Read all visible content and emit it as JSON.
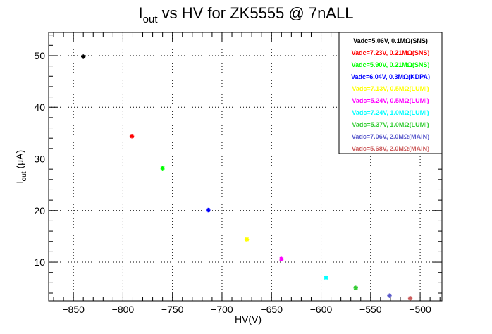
{
  "chart_data": {
    "type": "scatter",
    "title": {
      "main": "I",
      "sub": "out",
      "rest": " vs HV for ZK5555 @ 7nALL"
    },
    "xlabel": "HV(V)",
    "ylabel": {
      "main": "I",
      "sub": "out",
      "rest": " (μA)"
    },
    "xlim": [
      -875,
      -478
    ],
    "ylim": [
      2.5,
      54.5
    ],
    "x_ticks": [
      -850,
      -800,
      -750,
      -700,
      -650,
      -600,
      -550,
      -500
    ],
    "x_tick_labels": [
      "−850",
      "−800",
      "−750",
      "−700",
      "−650",
      "−600",
      "−550",
      "−500"
    ],
    "y_ticks": [
      10,
      20,
      30,
      40,
      50
    ],
    "y_tick_labels": [
      "10",
      "20",
      "30",
      "40",
      "50"
    ],
    "grid": true,
    "legend_position": "top-right",
    "series": [
      {
        "name": "Vadc=5.06V, 0.1MΩ(SNS)",
        "color": "#000000",
        "x": [
          -840
        ],
        "y": [
          49.8
        ]
      },
      {
        "name": "Vadc=7.23V, 0.21MΩ(SNS)",
        "color": "#ff0000",
        "x": [
          -791
        ],
        "y": [
          34.4
        ]
      },
      {
        "name": "Vadc=5.90V, 0.21MΩ(SNS)",
        "color": "#00ff00",
        "x": [
          -760
        ],
        "y": [
          28.2
        ]
      },
      {
        "name": "Vadc=6.04V, 0.3MΩ(KDPA)",
        "color": "#0000ff",
        "x": [
          -714
        ],
        "y": [
          20.1
        ]
      },
      {
        "name": "Vadc=7.13V, 0.5MΩ(LUMI)",
        "color": "#ffff00",
        "x": [
          -675
        ],
        "y": [
          14.4
        ]
      },
      {
        "name": "Vadc=5.24V, 0.5MΩ(LUMI)",
        "color": "#ff00ff",
        "x": [
          -640
        ],
        "y": [
          10.6
        ]
      },
      {
        "name": "Vadc=7.24V, 1.0MΩ(LUMI)",
        "color": "#00ffff",
        "x": [
          -595
        ],
        "y": [
          7.0
        ]
      },
      {
        "name": "Vadc=5.37V, 1.0MΩ(LUMI)",
        "color": "#33cc33",
        "x": [
          -565
        ],
        "y": [
          5.0
        ]
      },
      {
        "name": "Vadc=7.06V, 2.0MΩ(MAIN)",
        "color": "#5c5ccc",
        "x": [
          -531
        ],
        "y": [
          3.5
        ]
      },
      {
        "name": "Vadc=5.68V, 2.0MΩ(MAIN)",
        "color": "#cc5c5c",
        "x": [
          -510
        ],
        "y": [
          3.0
        ]
      }
    ]
  }
}
